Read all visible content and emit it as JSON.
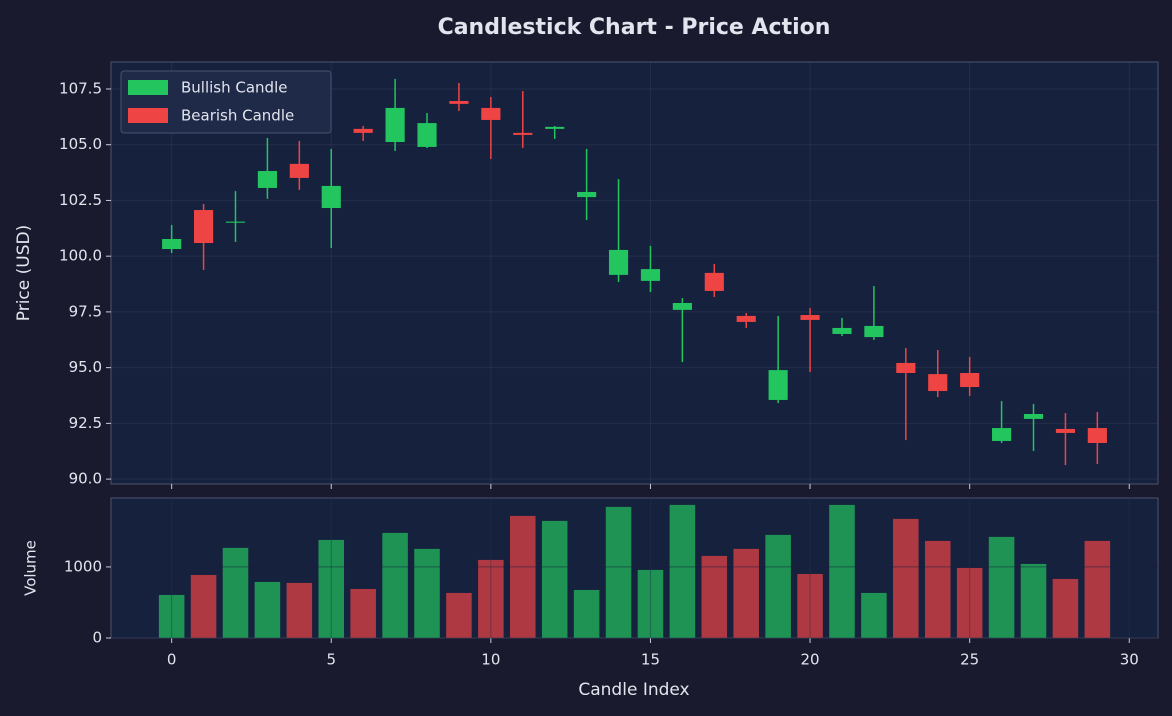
{
  "chart_data": {
    "type": "candlestick",
    "title": "Candlestick Chart - Price Action",
    "xlabel": "Candle Index",
    "ylabel": "Price (USD)",
    "x": [
      0,
      1,
      2,
      3,
      4,
      5,
      6,
      7,
      8,
      9,
      10,
      11,
      12,
      13,
      14,
      15,
      16,
      17,
      18,
      19,
      20,
      21,
      22,
      23,
      24,
      25,
      26,
      27,
      28,
      29
    ],
    "open": [
      100.32,
      102.07,
      101.5,
      103.06,
      104.14,
      102.16,
      105.71,
      105.12,
      104.9,
      106.96,
      106.65,
      105.53,
      105.71,
      102.65,
      99.16,
      98.89,
      97.59,
      99.25,
      97.32,
      93.55,
      97.36,
      96.51,
      96.37,
      95.21,
      94.71,
      94.76,
      91.71,
      92.7,
      92.25,
      92.29
    ],
    "high": [
      101.4,
      102.34,
      102.92,
      105.3,
      105.17,
      104.81,
      105.84,
      107.95,
      106.42,
      107.77,
      107.14,
      107.41,
      105.84,
      104.81,
      103.46,
      100.46,
      98.12,
      99.65,
      97.45,
      97.32,
      97.67,
      97.23,
      98.66,
      95.88,
      95.79,
      95.48,
      93.5,
      93.37,
      92.96,
      93.01
    ],
    "low": [
      100.14,
      99.38,
      100.64,
      102.57,
      102.97,
      100.37,
      105.17,
      104.72,
      104.85,
      106.51,
      104.36,
      104.85,
      105.26,
      101.62,
      98.84,
      98.39,
      95.25,
      98.17,
      96.78,
      93.41,
      94.8,
      96.42,
      96.24,
      91.75,
      93.68,
      93.73,
      91.62,
      91.26,
      90.63,
      90.68
    ],
    "close": [
      100.77,
      100.59,
      101.55,
      103.82,
      103.51,
      103.15,
      105.53,
      106.65,
      105.97,
      106.83,
      106.11,
      105.44,
      105.8,
      102.88,
      100.28,
      99.42,
      97.9,
      98.44,
      97.05,
      94.89,
      97.14,
      96.78,
      96.87,
      94.76,
      93.95,
      94.13,
      92.29,
      92.92,
      92.07,
      91.62
    ],
    "legend": [
      {
        "name": "Bullish Candle",
        "color": "#22c55e"
      },
      {
        "name": "Bearish Candle",
        "color": "#ef4444"
      }
    ],
    "legend_position": "upper left",
    "xlim": [
      -1.9,
      30.9
    ],
    "xticks": [
      0,
      5,
      10,
      15,
      20,
      25,
      30
    ],
    "ylim": [
      89.78,
      108.71
    ],
    "yticks": [
      {
        "value": 90,
        "label": "90.0"
      },
      92.5,
      {
        "value": 95,
        "label": "95.0"
      },
      97.5,
      {
        "value": 100,
        "label": "100.0"
      },
      102.5,
      {
        "value": 105,
        "label": "105.0"
      },
      107.5
    ],
    "grid": true,
    "volume": {
      "ylabel": "Volume",
      "values": [
        606,
        887,
        1268,
        789,
        775,
        1380,
        690,
        1479,
        1254,
        634,
        1099,
        1718,
        1648,
        676,
        1845,
        958,
        1873,
        1155,
        1254,
        1451,
        901,
        1873,
        634,
        1676,
        1366,
        986,
        1423,
        1042,
        831,
        1366
      ],
      "ylim": [
        0,
        1970
      ],
      "yticks": [
        0,
        1000
      ]
    }
  }
}
